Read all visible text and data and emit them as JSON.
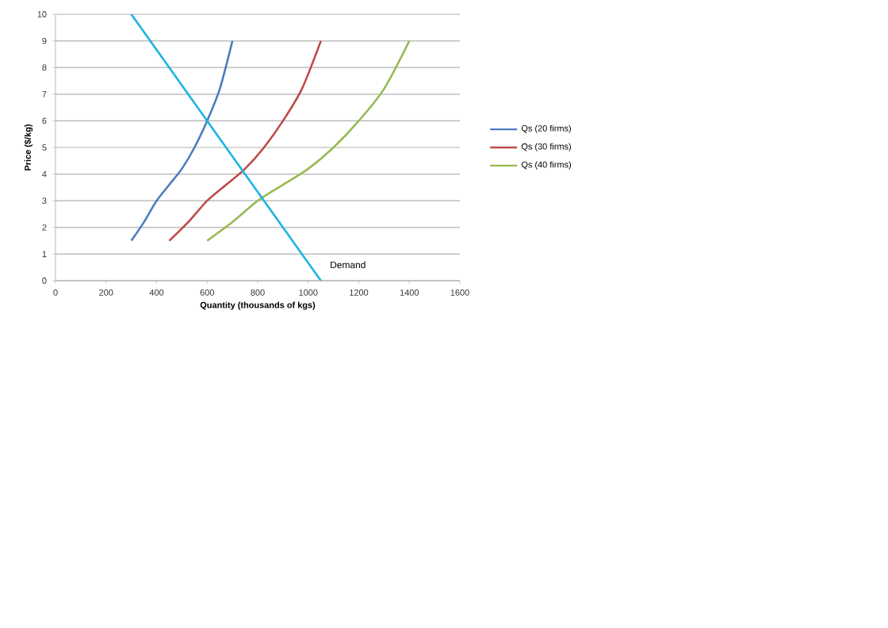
{
  "chart_data": {
    "type": "line",
    "xlabel": "Quantity (thousands of kgs)",
    "ylabel": "Price ($/kg)",
    "series": [
      {
        "name": "Qs (20 firms)",
        "color": "#4a7ebb",
        "x": [
          300,
          350,
          400,
          450,
          500,
          550,
          600,
          650,
          700
        ],
        "values": [
          1.5,
          2.2,
          3,
          3.6,
          4.2,
          5,
          6,
          7.2,
          9
        ]
      },
      {
        "name": "Qs (30 firms)",
        "color": "#be4b48",
        "x": [
          450,
          525,
          600,
          675,
          750,
          825,
          900,
          975,
          1050
        ],
        "values": [
          1.5,
          2.2,
          3,
          3.6,
          4.2,
          5,
          6,
          7.2,
          9
        ]
      },
      {
        "name": "Qs (40 firms)",
        "color": "#98b954",
        "x": [
          600,
          700,
          800,
          900,
          1000,
          1100,
          1200,
          1300,
          1400
        ],
        "values": [
          1.5,
          2.2,
          3,
          3.6,
          4.2,
          5,
          6,
          7.2,
          9
        ]
      },
      {
        "color": "#1cb4e0",
        "x": [
          300,
          1050
        ],
        "values": [
          10,
          0
        ]
      }
    ],
    "xlim": [
      0,
      1600
    ],
    "xticks": [
      0,
      200,
      400,
      600,
      800,
      1000,
      1200,
      1400,
      1600
    ],
    "ylim": [
      0,
      10
    ],
    "yticks": [
      0,
      1,
      2,
      3,
      4,
      5,
      6,
      7,
      8,
      9,
      10
    ],
    "grid": "y",
    "legend": "right",
    "marker": "none",
    "line_style": "solid",
    "annotations": [
      "Demand"
    ]
  }
}
